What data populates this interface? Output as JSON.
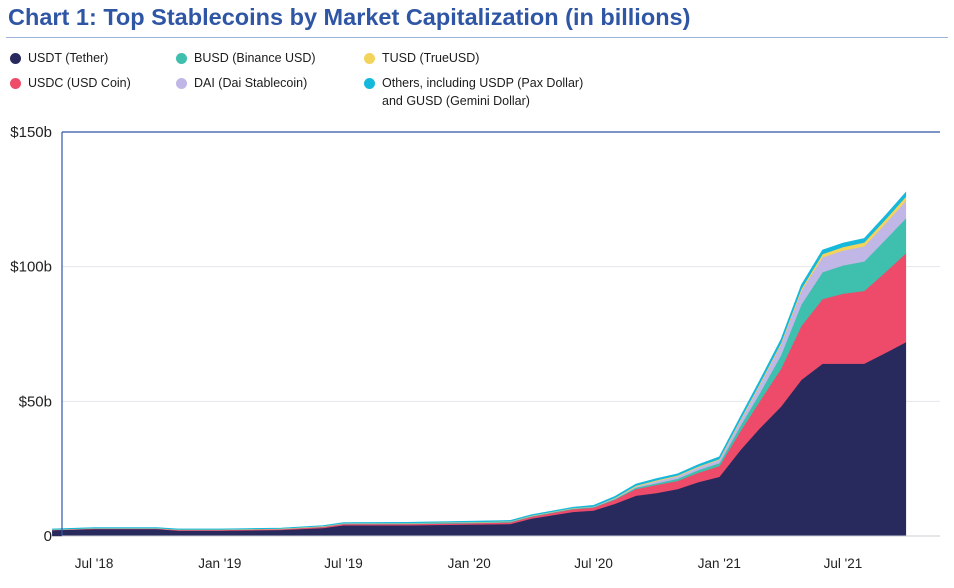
{
  "chart_data": {
    "type": "area",
    "stacked": true,
    "title": "Chart 1: Top Stablecoins by Market Capitalization (in billions)",
    "ylim": [
      0,
      150
    ],
    "y_ticks": [
      0,
      50,
      100,
      150
    ],
    "y_tick_labels": [
      "0",
      "$50b",
      "$100b",
      "$150b"
    ],
    "x_ticks": [
      "2018-07-01",
      "2019-01-01",
      "2019-07-01",
      "2020-01-01",
      "2020-07-01",
      "2021-01-01",
      "2021-07-01"
    ],
    "x_tick_labels": [
      "Jul '18",
      "Jan '19",
      "Jul '19",
      "Jan '20",
      "Jul '20",
      "Jan '21",
      "Jul '21"
    ],
    "legend_position": "top",
    "x": [
      "2018-05-01",
      "2018-07-01",
      "2018-10-01",
      "2018-11-01",
      "2019-01-01",
      "2019-04-01",
      "2019-06-01",
      "2019-07-01",
      "2019-10-01",
      "2020-01-01",
      "2020-03-01",
      "2020-04-01",
      "2020-06-01",
      "2020-07-01",
      "2020-08-01",
      "2020-09-01",
      "2020-10-01",
      "2020-11-01",
      "2020-12-01",
      "2021-01-01",
      "2021-02-01",
      "2021-03-01",
      "2021-04-01",
      "2021-05-01",
      "2021-06-01",
      "2021-07-01",
      "2021-08-01",
      "2021-09-01",
      "2021-10-01"
    ],
    "series": [
      {
        "name": "USDT (Tether)",
        "color": "#282a5e",
        "values": [
          2.2,
          2.6,
          2.6,
          2.0,
          2.0,
          2.3,
          3.0,
          4.0,
          4.0,
          4.3,
          4.5,
          6.5,
          9.0,
          9.5,
          12.0,
          15.0,
          16.0,
          17.5,
          20.0,
          22.0,
          32.0,
          40.0,
          48.0,
          58.0,
          64.0,
          64.0,
          64.0,
          68.0,
          72.0
        ]
      },
      {
        "name": "USDC (USD Coin)",
        "color": "#ee4b6a",
        "values": [
          0.1,
          0.2,
          0.2,
          0.3,
          0.3,
          0.3,
          0.4,
          0.5,
          0.5,
          0.5,
          0.6,
          0.7,
          1.0,
          1.1,
          1.5,
          2.5,
          3.0,
          3.0,
          3.5,
          4.0,
          7.0,
          10.0,
          14.0,
          20.0,
          24.0,
          26.0,
          27.0,
          30.0,
          33.0
        ]
      },
      {
        "name": "BUSD (Binance USD)",
        "color": "#3fbfad",
        "values": [
          0,
          0,
          0,
          0,
          0,
          0,
          0.1,
          0.1,
          0.2,
          0.2,
          0.2,
          0.2,
          0.2,
          0.2,
          0.3,
          0.5,
          0.6,
          0.8,
          1.0,
          1.1,
          2.0,
          3.0,
          5.0,
          8.0,
          10.0,
          10.5,
          11.0,
          12.0,
          13.0
        ]
      },
      {
        "name": "DAI (Dai Stablecoin)",
        "color": "#c0b7e6",
        "values": [
          0.05,
          0.05,
          0.05,
          0.05,
          0.05,
          0.08,
          0.1,
          0.1,
          0.1,
          0.1,
          0.1,
          0.1,
          0.1,
          0.1,
          0.2,
          0.4,
          0.8,
          0.9,
          1.0,
          1.2,
          2.0,
          3.0,
          4.0,
          5.0,
          5.5,
          5.5,
          5.6,
          6.0,
          6.5
        ]
      },
      {
        "name": "TUSD (TrueUSD)",
        "color": "#f2d45c",
        "values": [
          0.1,
          0.1,
          0.1,
          0.1,
          0.1,
          0.1,
          0.1,
          0.1,
          0.1,
          0.1,
          0.1,
          0.1,
          0.1,
          0.1,
          0.2,
          0.3,
          0.3,
          0.3,
          0.3,
          0.3,
          0.4,
          0.5,
          0.6,
          0.8,
          1.2,
          1.3,
          1.4,
          1.5,
          1.5
        ]
      },
      {
        "name": "Others, including USDP (Pax Dollar) and GUSD (Gemini Dollar)",
        "color": "#16b8dc",
        "values": [
          0.2,
          0.2,
          0.2,
          0.2,
          0.2,
          0.2,
          0.2,
          0.2,
          0.2,
          0.3,
          0.3,
          0.3,
          0.3,
          0.4,
          0.5,
          0.6,
          0.6,
          0.6,
          0.7,
          0.8,
          1.0,
          1.2,
          1.3,
          1.4,
          1.5,
          1.5,
          1.5,
          1.5,
          1.6
        ]
      }
    ]
  },
  "legend": {
    "items": [
      {
        "label": "USDT (Tether)",
        "color": "#282a5e"
      },
      {
        "label": "USDC (USD Coin)",
        "color": "#ee4b6a"
      },
      {
        "label": "BUSD (Binance USD)",
        "color": "#3fbfad"
      },
      {
        "label": "DAI (Dai Stablecoin)",
        "color": "#c0b7e6"
      },
      {
        "label": "TUSD (TrueUSD)",
        "color": "#f2d45c"
      },
      {
        "label": "Others, including USDP (Pax Dollar)",
        "label_line2": "and GUSD (Gemini Dollar)",
        "color": "#16b8dc"
      }
    ]
  }
}
